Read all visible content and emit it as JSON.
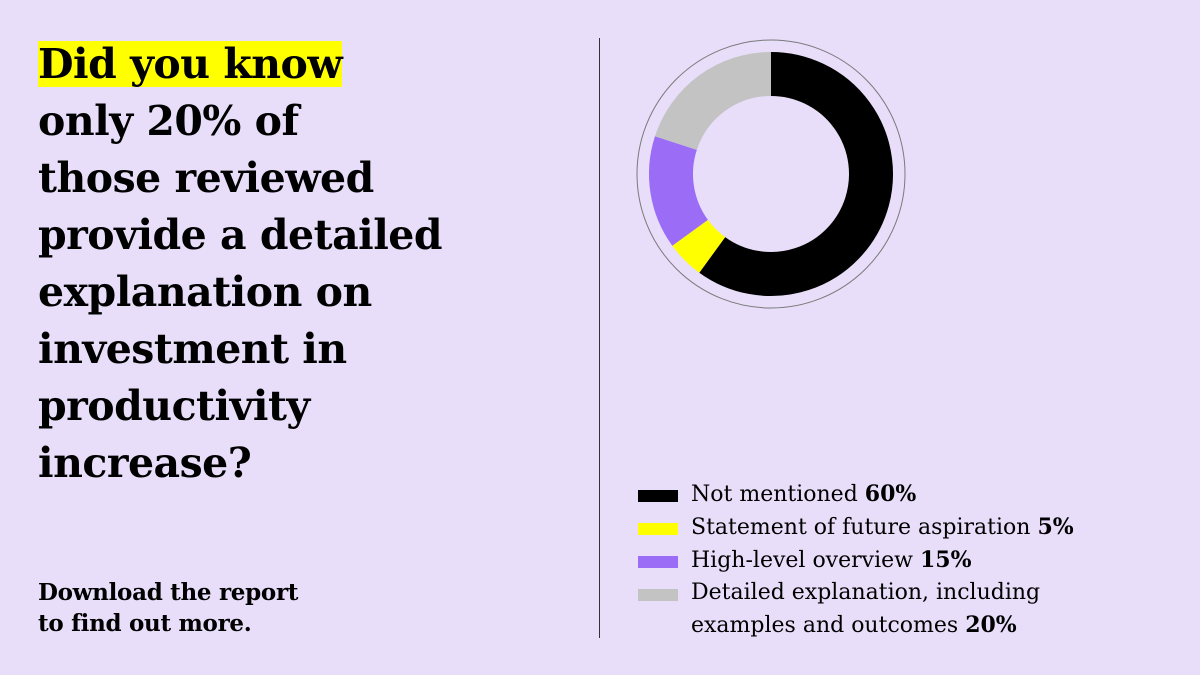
{
  "headline": {
    "lines": [
      "Did you know",
      "only 20% of",
      "those reviewed",
      "provide a detailed",
      "explanation on",
      "investment in",
      "productivity",
      "increase?"
    ],
    "highlight_color": "#ffff00"
  },
  "cta": {
    "lines": [
      "Download the report",
      "to find out more."
    ]
  },
  "chart_data": {
    "type": "pie",
    "style": "donut",
    "categories": [
      "Not mentioned",
      "Statement of future aspiration",
      "High-level overview",
      "Detailed explanation, including examples and outcomes"
    ],
    "values": [
      60,
      5,
      15,
      20
    ],
    "unit": "%",
    "colors": [
      "#000000",
      "#ffff00",
      "#9b6cf5",
      "#c3c3c3"
    ],
    "legend_position": "bottom-right",
    "legend": [
      {
        "label": "Not mentioned",
        "value": "60%",
        "lines": [
          "Not mentioned "
        ]
      },
      {
        "label": "Statement of future aspiration",
        "value": "5%",
        "lines": [
          "Statement of future aspiration "
        ]
      },
      {
        "label": "High-level overview",
        "value": "15%",
        "lines": [
          "High-level overview "
        ]
      },
      {
        "label": "Detailed explanation, including examples and outcomes",
        "value": "20%",
        "lines": [
          "Detailed explanation, including",
          "examples and outcomes "
        ]
      }
    ]
  },
  "colors": {
    "background": "#e8def9",
    "text": "#000000",
    "divider": "#333333"
  }
}
